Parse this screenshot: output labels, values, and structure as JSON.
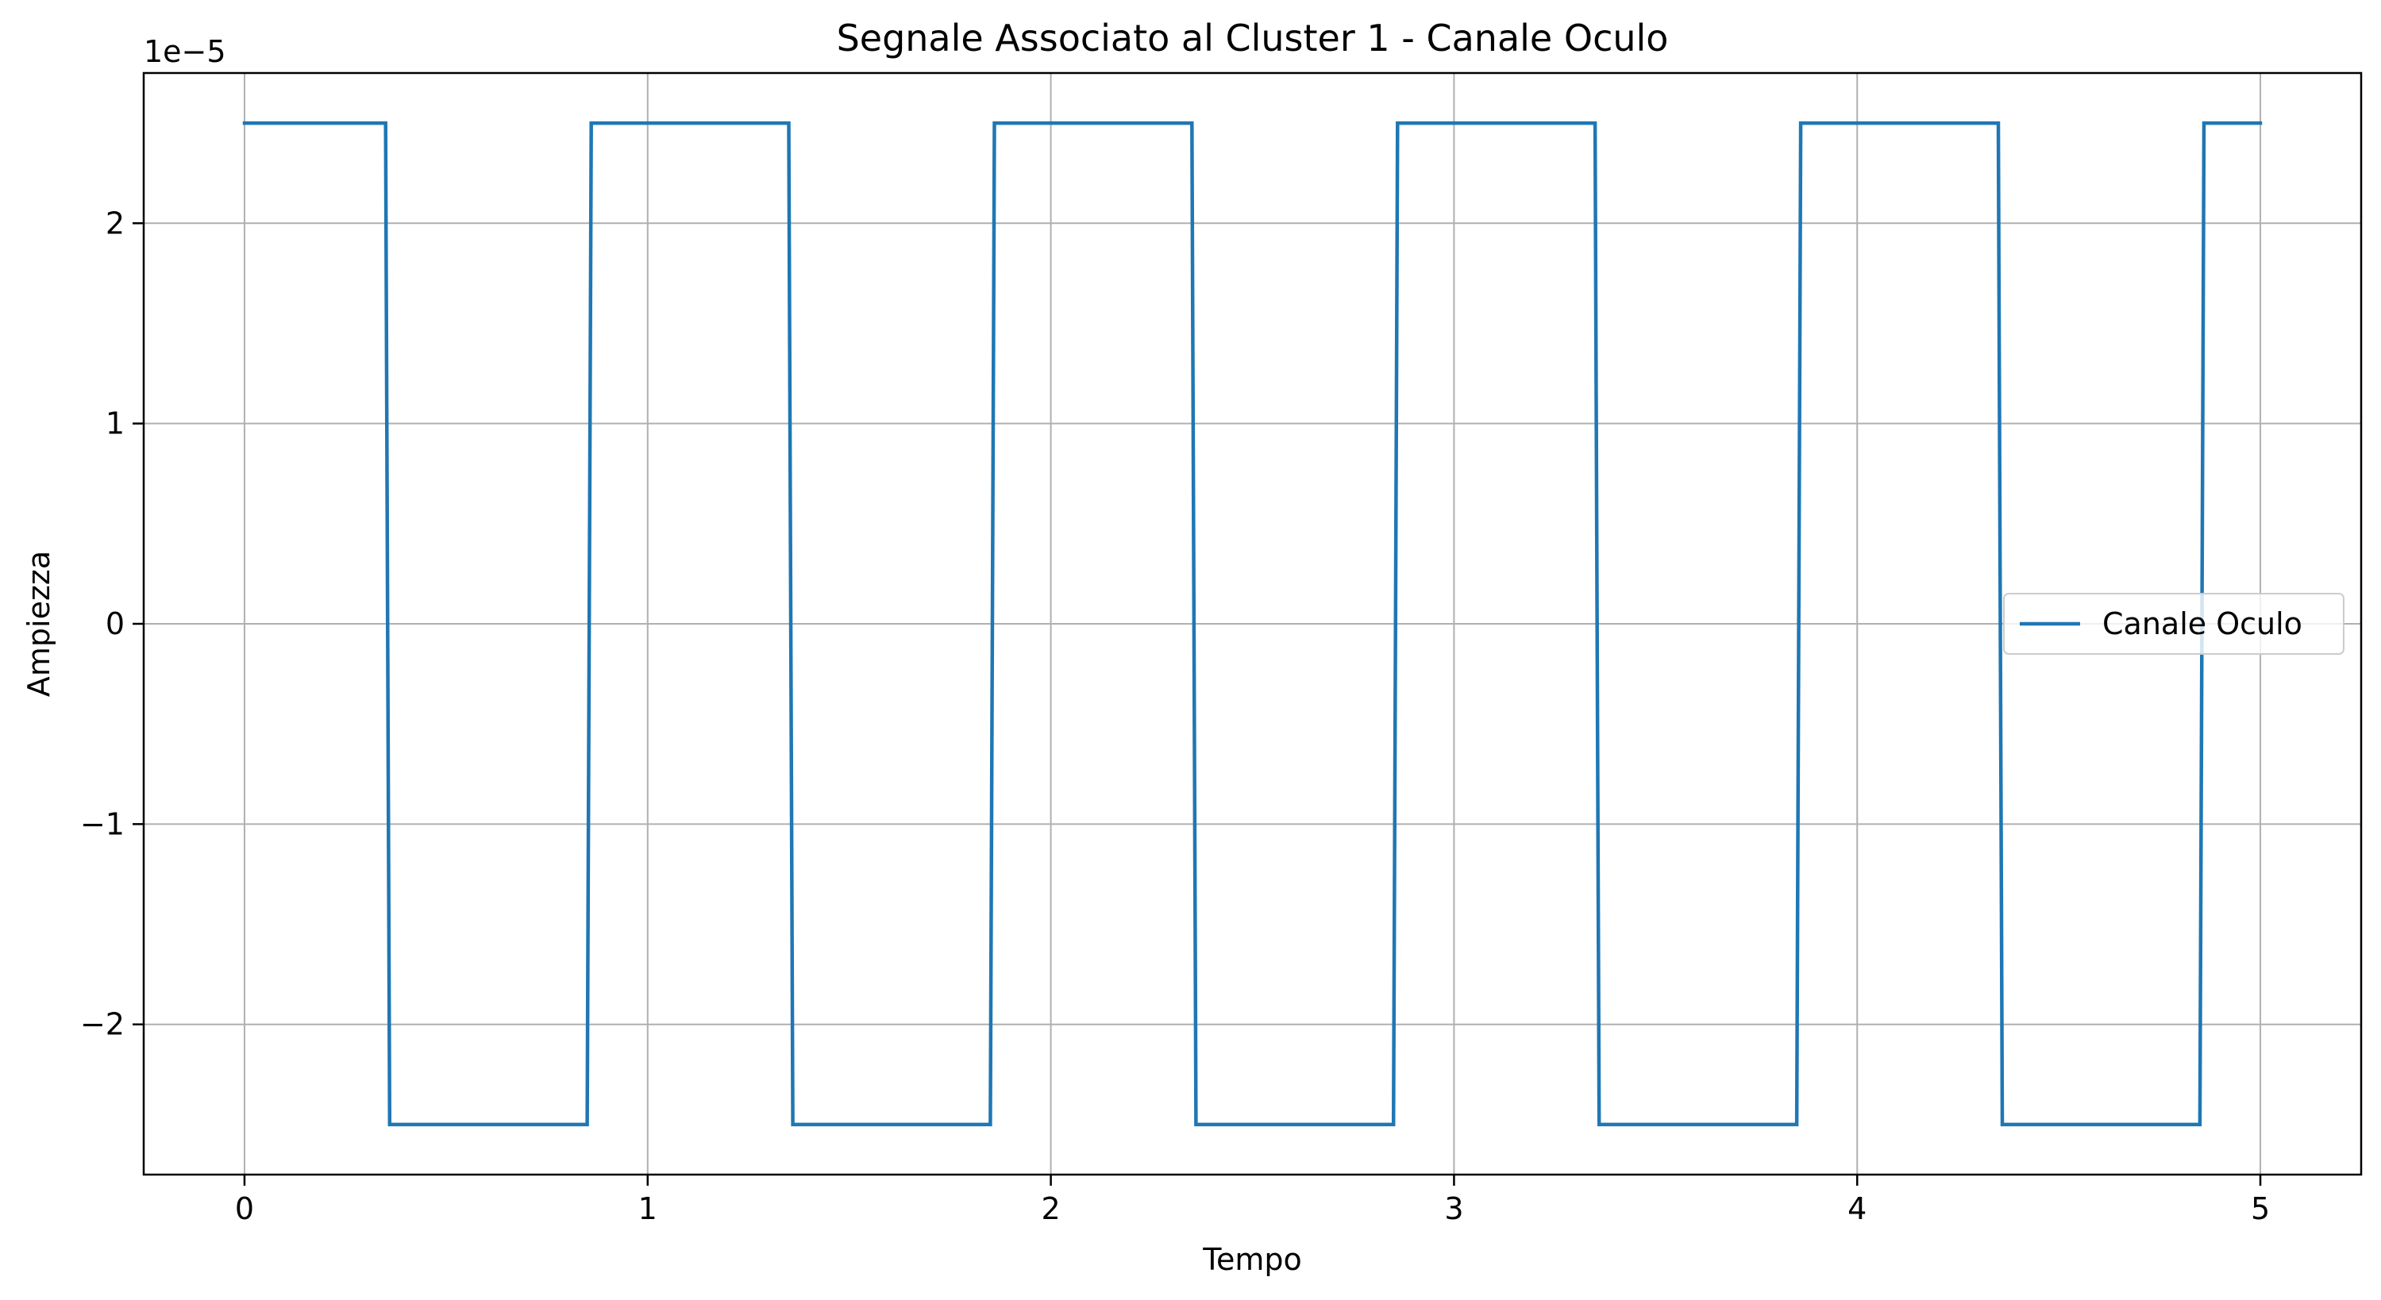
{
  "chart_data": {
    "type": "line",
    "title": "Segnale Associato al Cluster 1 - Canale Oculo",
    "xlabel": "Tempo",
    "ylabel": "Ampiezza",
    "y_offset_text": "1e−5",
    "y_scale": 1e-05,
    "xlim": [
      -0.25,
      5.25
    ],
    "ylim": [
      -2.75,
      2.75
    ],
    "x_ticks": [
      0,
      1,
      2,
      3,
      4,
      5
    ],
    "x_tick_labels": [
      "0",
      "1",
      "2",
      "3",
      "4",
      "5"
    ],
    "y_ticks": [
      -2,
      -1,
      0,
      1,
      2
    ],
    "y_tick_labels": [
      "−2",
      "−1",
      "0",
      "1",
      "2"
    ],
    "grid": true,
    "legend_position": "right",
    "series": [
      {
        "name": "Canale Oculo",
        "color": "#1f77b4",
        "x": [
          0,
          0.35,
          0.36,
          0.85,
          0.86,
          1.35,
          1.36,
          1.85,
          1.86,
          2.35,
          2.36,
          2.85,
          2.86,
          3.35,
          3.36,
          3.85,
          3.86,
          4.35,
          4.36,
          4.85,
          4.86,
          5.0
        ],
        "y": [
          2.5,
          2.5,
          -2.5,
          -2.5,
          2.5,
          2.5,
          -2.5,
          -2.5,
          2.5,
          2.5,
          -2.5,
          -2.5,
          2.5,
          2.5,
          -2.5,
          -2.5,
          2.5,
          2.5,
          -2.5,
          -2.5,
          2.5,
          2.5
        ]
      }
    ]
  }
}
